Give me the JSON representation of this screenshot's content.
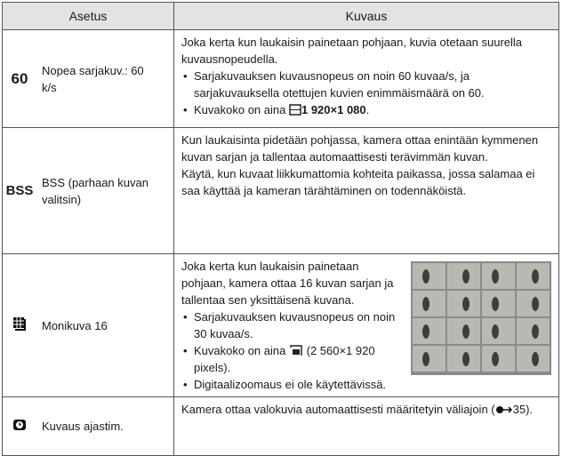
{
  "header": {
    "setting": "Asetus",
    "description": "Kuvaus"
  },
  "rows": [
    {
      "icon": "60",
      "name": "Nopea sarjakuv.: 60 k/s",
      "paragraphs": [
        "Joka kerta kun laukaisin painetaan pohjaan, kuvia otetaan suurella kuvausnopeudella."
      ],
      "bullets": [
        "Sarjakuvauksen kuvausnopeus on noin 60 kuvaa/s, ja sarjakuvauksella otettujen kuvien enimmäismäärä on 60."
      ],
      "size_note": {
        "prefix": "Kuvakoko on aina",
        "size": "1 920×1 080",
        "suffix": "."
      }
    },
    {
      "icon": "BSS",
      "name": "BSS (parhaan kuvan valitsin)",
      "paragraphs": [
        "Kun laukaisinta pidetään pohjassa, kamera ottaa enintään kymmenen kuvan sarjan ja tallentaa automaattisesti terävimmän kuvan.",
        "Käytä, kun kuvaat liikkumattomia kohteita paikassa, jossa salamaa ei saa käyttää ja kameran tärähtäminen on todennäköistä."
      ]
    },
    {
      "name": "Monikuva 16",
      "paragraphs": [
        "Joka kerta kun laukaisin painetaan pohjaan, kamera ottaa 16 kuvan sarjan ja tallentaa sen yksittäisenä kuvana."
      ],
      "bullets": [
        "Sarjakuvauksen kuvausnopeus on noin 30 kuvaa/s."
      ],
      "size_note": {
        "prefix": "Kuvakoko on aina",
        "size": "(2 560×1 920 pixels)."
      },
      "bullets_after": [
        "Digitaalizoomaus ei ole käytettävissä."
      ]
    },
    {
      "name": "Kuvaus ajastim.",
      "paragraph": {
        "text": "Kamera ottaa valokuvia automaattisesti määritetyin väliajoin (",
        "ref": "35",
        "suffix": ")."
      }
    }
  ]
}
